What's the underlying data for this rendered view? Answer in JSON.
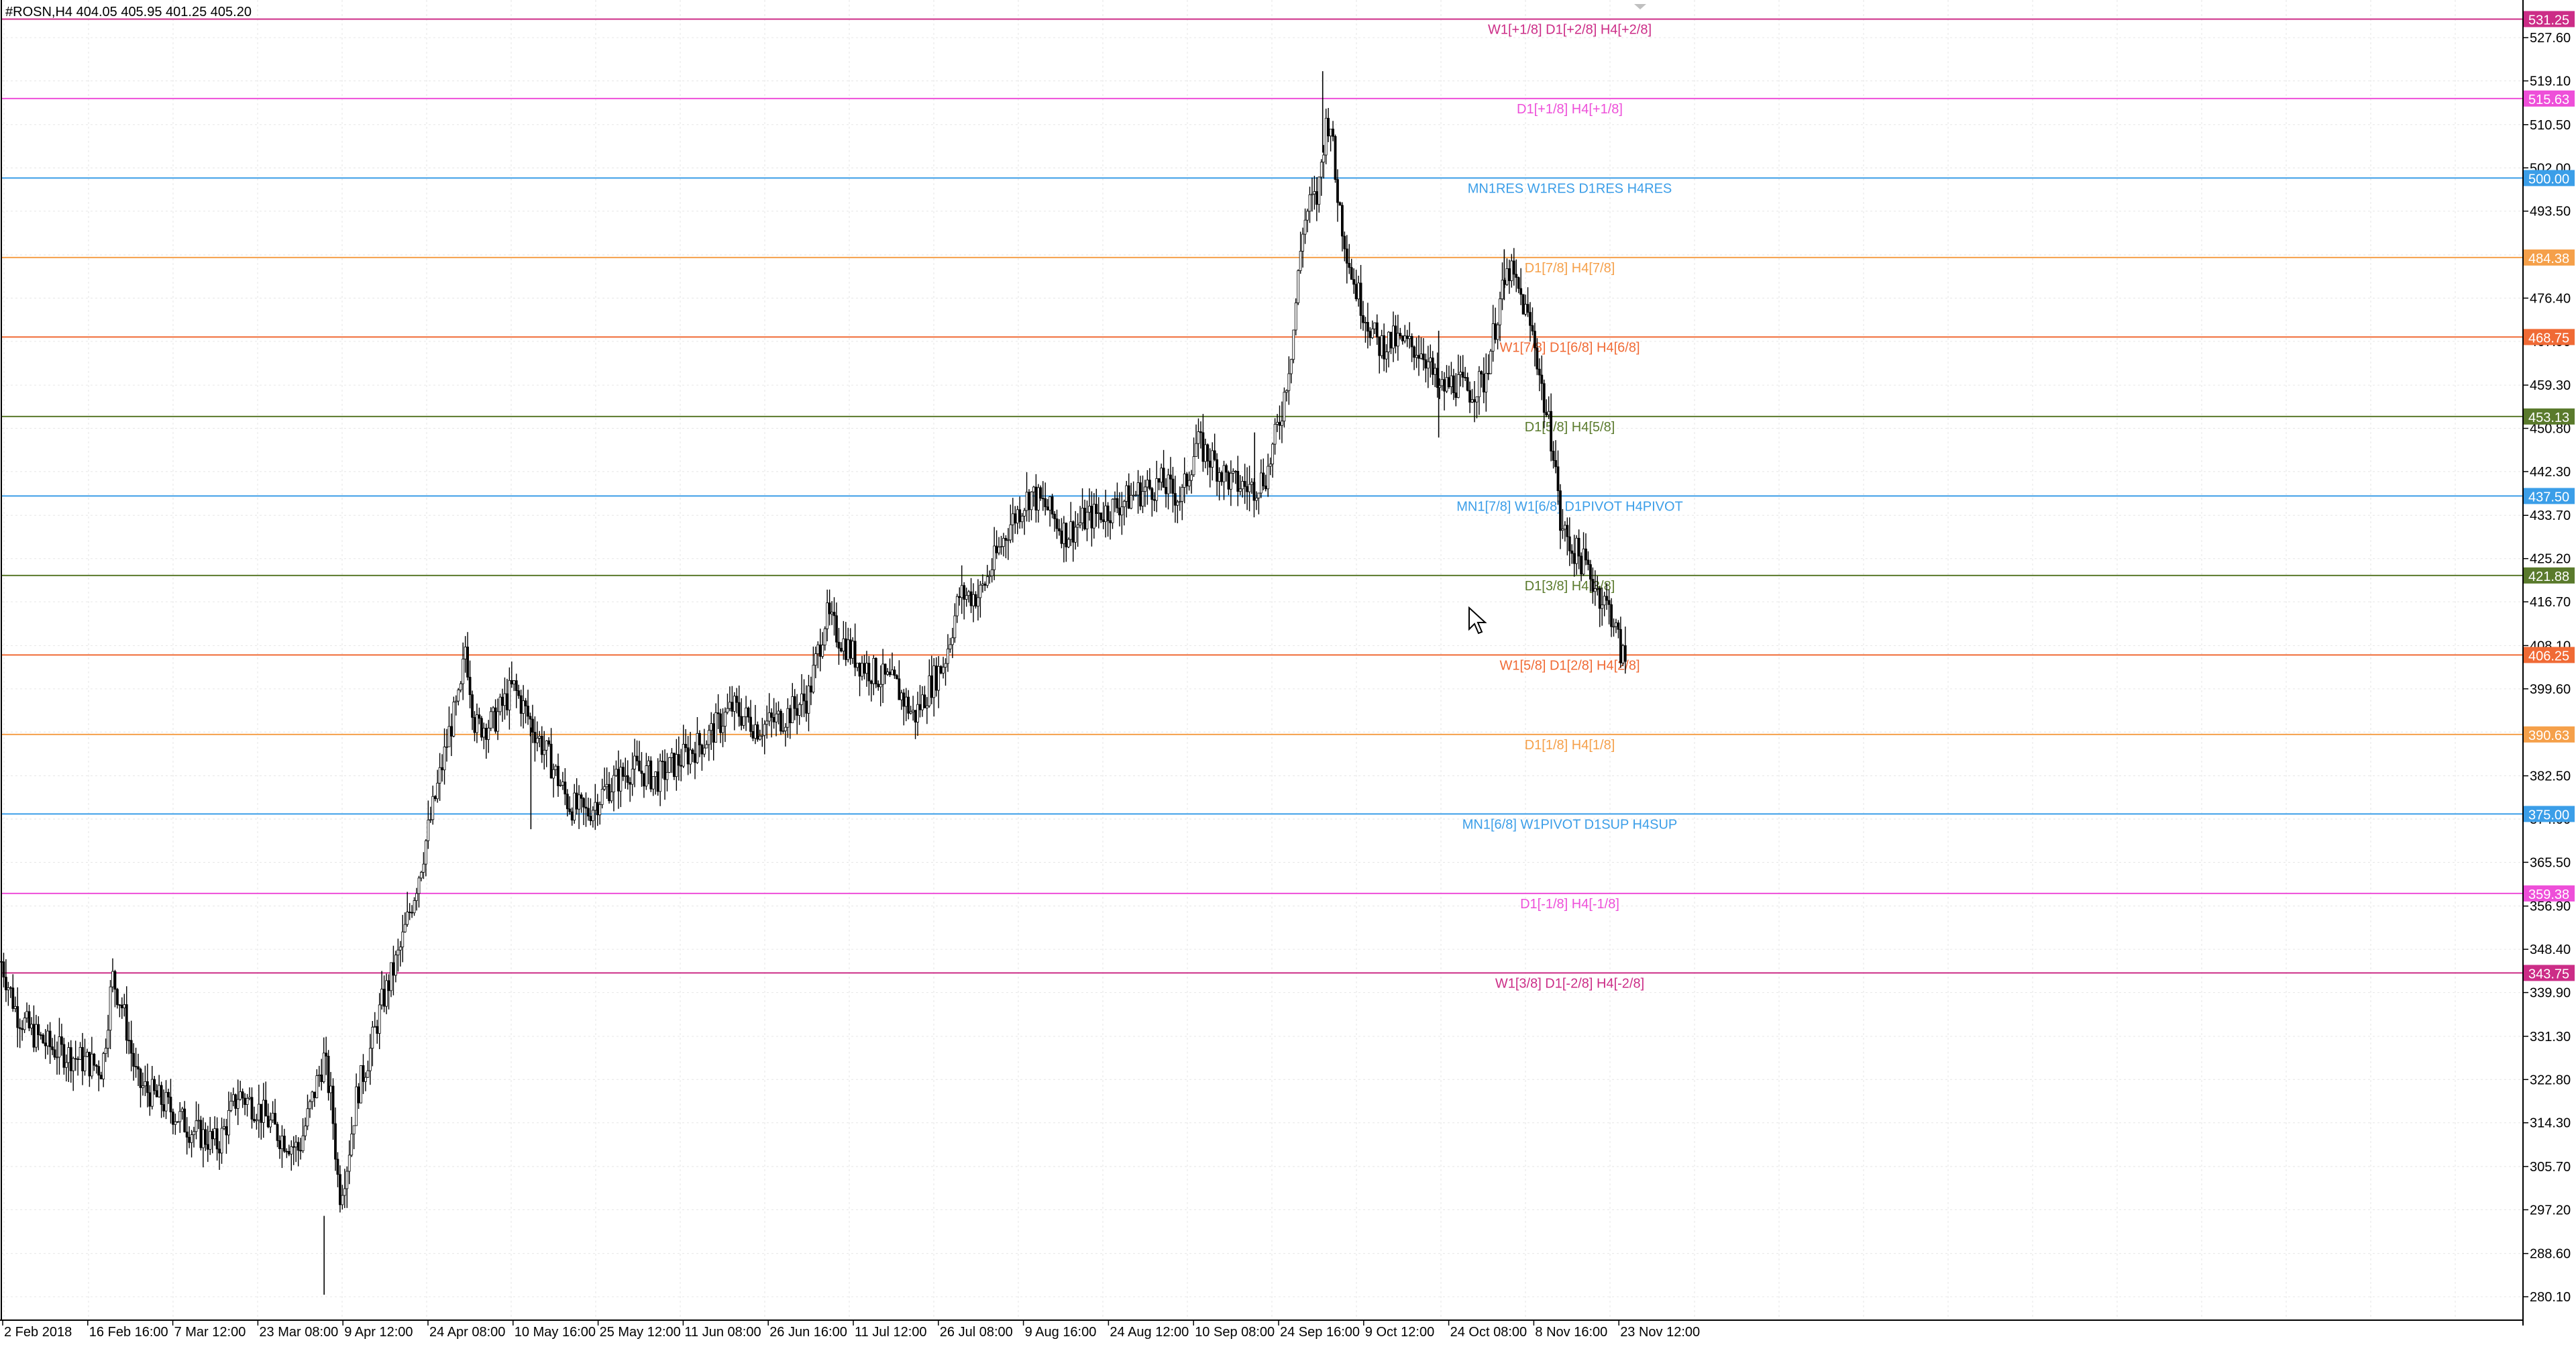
{
  "header": {
    "symbol_info": "#ROSN,H4 404.05 405.95 401.25 405.20"
  },
  "colors": {
    "background": "#ffffff",
    "grid": "#e6e6e6",
    "candle": "#000000",
    "axis_text": "#000000",
    "blue": "#3b9ee8",
    "magenta": "#ee4fd9",
    "crimson": "#cc2d87",
    "orange": "#f5a04a",
    "red_orange": "#f06a35",
    "olive": "#5a7a2c"
  },
  "chart_data": {
    "type": "candlestick",
    "symbol": "#ROSN",
    "timeframe": "H4",
    "ohlc_last": {
      "open": 404.05,
      "high": 405.95,
      "low": 401.25,
      "close": 405.2
    },
    "ylim": [
      275.5,
      535.0
    ],
    "y_ticks": [
      527.6,
      519.1,
      510.5,
      502.0,
      493.5,
      484.9,
      476.4,
      467.9,
      459.3,
      450.8,
      442.3,
      433.7,
      425.2,
      416.7,
      408.1,
      399.6,
      391.1,
      382.5,
      374.0,
      365.5,
      356.9,
      348.4,
      339.9,
      331.3,
      322.8,
      314.3,
      305.7,
      297.2,
      288.6,
      280.1
    ],
    "y_tick_labels": [
      "527.60",
      "519.10",
      "510.50",
      "502.00",
      "493.50",
      "484.90",
      "476.40",
      "467.90",
      "459.30",
      "450.80",
      "442.30",
      "433.70",
      "425.20",
      "416.70",
      "408.10",
      "399.60",
      "391.10",
      "382.50",
      "374.00",
      "365.50",
      "356.90",
      "348.40",
      "339.90",
      "331.30",
      "322.80",
      "314.30",
      "305.70",
      "297.20",
      "288.60",
      "280.10"
    ],
    "x_labels": [
      "2 Feb 2018",
      "16 Feb 16:00",
      "7 Mar 12:00",
      "23 Mar 08:00",
      "9 Apr 12:00",
      "24 Apr 08:00",
      "10 May 16:00",
      "25 May 12:00",
      "11 Jun 08:00",
      "26 Jun 16:00",
      "11 Jul 12:00",
      "26 Jul 08:00",
      "9 Aug 16:00",
      "24 Aug 12:00",
      "10 Sep 08:00",
      "24 Sep 16:00",
      "9 Oct 12:00",
      "24 Oct 08:00",
      "8 Nov 16:00",
      "23 Nov 12:00"
    ],
    "levels": [
      {
        "value": 531.25,
        "label": "W1[+1/8] D1[+2/8] H4[+2/8]",
        "price_tag": "531.25",
        "color": "#cc2d87"
      },
      {
        "value": 515.63,
        "label": "D1[+1/8] H4[+1/8]",
        "price_tag": "515.63",
        "color": "#ee4fd9"
      },
      {
        "value": 500.0,
        "label": "MN1RES W1RES D1RES H4RES",
        "price_tag": "500.00",
        "color": "#3b9ee8"
      },
      {
        "value": 484.38,
        "label": "D1[7/8] H4[7/8]",
        "price_tag": "484.38",
        "color": "#f5a04a"
      },
      {
        "value": 468.75,
        "label": "W1[7/8] D1[6/8] H4[6/8]",
        "price_tag": "468.75",
        "color": "#f06a35"
      },
      {
        "value": 453.13,
        "label": "D1[5/8] H4[5/8]",
        "price_tag": "453.13",
        "color": "#5a7a2c"
      },
      {
        "value": 437.5,
        "label": "MN1[7/8] W1[6/8] D1PIVOT H4PIVOT",
        "price_tag": "437.50",
        "color": "#3b9ee8"
      },
      {
        "value": 421.88,
        "label": "D1[3/8] H4[3/8]",
        "price_tag": "421.88",
        "color": "#5a7a2c"
      },
      {
        "value": 406.25,
        "label": "W1[5/8] D1[2/8] H4[2/8]",
        "price_tag": "406.25",
        "color": "#f06a35"
      },
      {
        "value": 390.63,
        "label": "D1[1/8] H4[1/8]",
        "price_tag": "390.63",
        "color": "#f5a04a"
      },
      {
        "value": 375.0,
        "label": "MN1[6/8] W1PIVOT D1SUP H4SUP",
        "price_tag": "375.00",
        "color": "#3b9ee8"
      },
      {
        "value": 359.38,
        "label": "D1[-1/8] H4[-1/8]",
        "price_tag": "359.38",
        "color": "#ee4fd9"
      },
      {
        "value": 343.75,
        "label": "W1[3/8] D1[-2/8] H4[-2/8]",
        "price_tag": "343.75",
        "color": "#cc2d87"
      }
    ],
    "close_path": [
      [
        0.0,
        346
      ],
      [
        0.006,
        336
      ],
      [
        0.012,
        332
      ],
      [
        0.02,
        329
      ],
      [
        0.03,
        327
      ],
      [
        0.04,
        325
      ],
      [
        0.044,
        343
      ],
      [
        0.048,
        337
      ],
      [
        0.054,
        322
      ],
      [
        0.065,
        318
      ],
      [
        0.075,
        313
      ],
      [
        0.086,
        310
      ],
      [
        0.094,
        320
      ],
      [
        0.102,
        317
      ],
      [
        0.11,
        312
      ],
      [
        0.118,
        309
      ],
      [
        0.125,
        322
      ],
      [
        0.128,
        327
      ],
      [
        0.131,
        318
      ],
      [
        0.134,
        300
      ],
      [
        0.137,
        306
      ],
      [
        0.141,
        320
      ],
      [
        0.146,
        328
      ],
      [
        0.151,
        338
      ],
      [
        0.158,
        348
      ],
      [
        0.165,
        362
      ],
      [
        0.172,
        378
      ],
      [
        0.178,
        392
      ],
      [
        0.182,
        398
      ],
      [
        0.184,
        408
      ],
      [
        0.188,
        392
      ],
      [
        0.195,
        393
      ],
      [
        0.203,
        400
      ],
      [
        0.21,
        393
      ],
      [
        0.218,
        385
      ],
      [
        0.225,
        377
      ],
      [
        0.232,
        375
      ],
      [
        0.24,
        380
      ],
      [
        0.25,
        384
      ],
      [
        0.26,
        382
      ],
      [
        0.27,
        386
      ],
      [
        0.28,
        390
      ],
      [
        0.29,
        396
      ],
      [
        0.3,
        392
      ],
      [
        0.31,
        394
      ],
      [
        0.32,
        398
      ],
      [
        0.327,
        414
      ],
      [
        0.332,
        410
      ],
      [
        0.34,
        405
      ],
      [
        0.348,
        402
      ],
      [
        0.355,
        400
      ],
      [
        0.362,
        394
      ],
      [
        0.368,
        400
      ],
      [
        0.374,
        405
      ],
      [
        0.38,
        418
      ],
      [
        0.388,
        418
      ],
      [
        0.394,
        425
      ],
      [
        0.4,
        432
      ],
      [
        0.408,
        438
      ],
      [
        0.415,
        435
      ],
      [
        0.422,
        430
      ],
      [
        0.43,
        433
      ],
      [
        0.44,
        435
      ],
      [
        0.45,
        438
      ],
      [
        0.46,
        440
      ],
      [
        0.468,
        437
      ],
      [
        0.474,
        448
      ],
      [
        0.481,
        444
      ],
      [
        0.488,
        440
      ],
      [
        0.496,
        439
      ],
      [
        0.502,
        442
      ],
      [
        0.508,
        455
      ],
      [
        0.512,
        468
      ],
      [
        0.516,
        490
      ],
      [
        0.519,
        495
      ],
      [
        0.522,
        496
      ],
      [
        0.525,
        510
      ],
      [
        0.527,
        512
      ],
      [
        0.529,
        500
      ],
      [
        0.532,
        490
      ],
      [
        0.536,
        480
      ],
      [
        0.541,
        473
      ],
      [
        0.546,
        467
      ],
      [
        0.552,
        468
      ],
      [
        0.558,
        467
      ],
      [
        0.564,
        466
      ],
      [
        0.57,
        458
      ],
      [
        0.576,
        460
      ],
      [
        0.582,
        458
      ],
      [
        0.588,
        460
      ],
      [
        0.594,
        475
      ],
      [
        0.598,
        482
      ],
      [
        0.603,
        476
      ],
      [
        0.608,
        468
      ],
      [
        0.612,
        455
      ],
      [
        0.616,
        446
      ],
      [
        0.618,
        432
      ],
      [
        0.622,
        428
      ],
      [
        0.628,
        424
      ],
      [
        0.634,
        418
      ],
      [
        0.639,
        414
      ],
      [
        0.642,
        407
      ],
      [
        0.644,
        405
      ]
    ]
  }
}
